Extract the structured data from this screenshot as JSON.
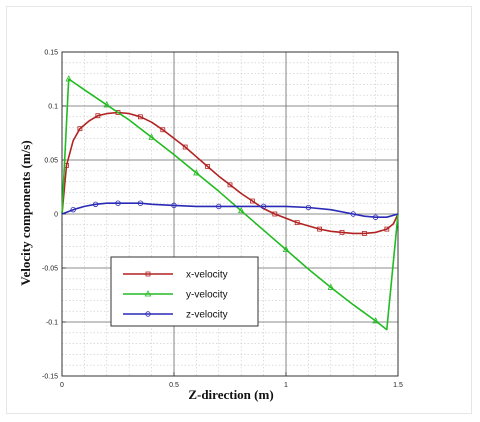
{
  "chart_data": {
    "type": "line",
    "title": "",
    "xlabel": "Z-direction (m)",
    "ylabel": "Velocity components (m/s)",
    "xlim": [
      0,
      1.5
    ],
    "ylim": [
      -0.15,
      0.15
    ],
    "xticks": [
      "0",
      "0.5",
      "1",
      "1.5"
    ],
    "yticks": [
      "0.15",
      "0.1",
      "0.05",
      "0",
      "-0.05",
      "-0.1",
      "-0.15"
    ],
    "grid": true,
    "legend_position": "lower-left",
    "series": [
      {
        "name": "x-velocity",
        "color": "#b22222",
        "marker": "square",
        "x": [
          0,
          0.02,
          0.05,
          0.08,
          0.12,
          0.16,
          0.2,
          0.25,
          0.3,
          0.35,
          0.4,
          0.45,
          0.5,
          0.55,
          0.6,
          0.65,
          0.7,
          0.75,
          0.8,
          0.85,
          0.9,
          0.95,
          1.0,
          1.05,
          1.1,
          1.15,
          1.2,
          1.25,
          1.3,
          1.35,
          1.4,
          1.45,
          1.48,
          1.5
        ],
        "y": [
          0,
          0.045,
          0.068,
          0.079,
          0.086,
          0.091,
          0.093,
          0.094,
          0.093,
          0.09,
          0.085,
          0.078,
          0.07,
          0.062,
          0.053,
          0.044,
          0.035,
          0.027,
          0.019,
          0.012,
          0.005,
          0.0,
          -0.004,
          -0.008,
          -0.011,
          -0.014,
          -0.016,
          -0.017,
          -0.018,
          -0.018,
          -0.017,
          -0.014,
          -0.009,
          0
        ]
      },
      {
        "name": "y-velocity",
        "color": "#22bb22",
        "marker": "triangle",
        "x": [
          0,
          0.03,
          0.1,
          0.2,
          0.3,
          0.4,
          0.5,
          0.6,
          0.7,
          0.8,
          0.9,
          1.0,
          1.1,
          1.2,
          1.3,
          1.4,
          1.45,
          1.5
        ],
        "y": [
          0,
          0.125,
          0.115,
          0.101,
          0.087,
          0.071,
          0.055,
          0.038,
          0.021,
          0.003,
          -0.015,
          -0.033,
          -0.051,
          -0.068,
          -0.084,
          -0.099,
          -0.107,
          0
        ]
      },
      {
        "name": "z-velocity",
        "color": "#2a2ab8",
        "marker": "circle",
        "x": [
          0,
          0.05,
          0.1,
          0.15,
          0.2,
          0.25,
          0.3,
          0.35,
          0.4,
          0.5,
          0.6,
          0.7,
          0.8,
          0.9,
          1.0,
          1.1,
          1.2,
          1.3,
          1.35,
          1.4,
          1.45,
          1.5
        ],
        "y": [
          0,
          0.004,
          0.007,
          0.009,
          0.01,
          0.01,
          0.01,
          0.01,
          0.009,
          0.008,
          0.007,
          0.007,
          0.007,
          0.007,
          0.007,
          0.006,
          0.004,
          0.0,
          -0.002,
          -0.003,
          -0.003,
          0
        ]
      }
    ]
  }
}
